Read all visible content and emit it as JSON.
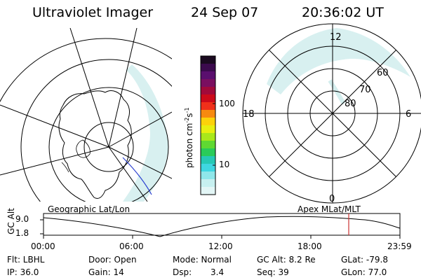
{
  "header": {
    "instrument": "Ultraviolet Imager",
    "date": "24 Sep 07",
    "time": "20:36:02 UT"
  },
  "colorbar": {
    "label": "photon cm",
    "label_sup1": "-2",
    "label_mid": "s",
    "label_sup2": "-1",
    "ticks": [
      "100",
      "10"
    ],
    "colors": [
      "#1a0a20",
      "#3b0a4d",
      "#5a0f6e",
      "#7a0f60",
      "#a10a3a",
      "#cc0a1a",
      "#f0301a",
      "#f78a10",
      "#fcd20a",
      "#e8ef10",
      "#a9e81a",
      "#5fd932",
      "#2acb59",
      "#26c9b5",
      "#3fd7e1",
      "#8fe7ea",
      "#c7f0f0",
      "#e3f6f6"
    ]
  },
  "left_panel": {
    "label": "Geographic Lat/Lon"
  },
  "right_panel": {
    "label": "Apex MLat/MLT",
    "mlt_labels": {
      "top": "12",
      "left": "18",
      "right": "6",
      "bottom": "0"
    },
    "lat_labels": [
      "60",
      "70",
      "80"
    ]
  },
  "timeline": {
    "y_label": "GC Alt",
    "y_ticks": [
      "9.0",
      "1.8"
    ],
    "x_ticks": [
      "00:00",
      "06:00",
      "12:00",
      "18:00",
      "23:59"
    ],
    "marker_color": "#cc3333"
  },
  "footer": {
    "flt": "Flt: LBHL",
    "door": "Door: Open",
    "mode": "Mode: Normal",
    "gcalt": "GC Alt: 8.2 Re",
    "glat": "GLat: -79.8",
    "ip": "IP: 36.0",
    "gain": "Gain: 14",
    "dsp_label": "Dsp:",
    "dsp_value": "3.4",
    "seq": "Seq: 39",
    "glon": "GLon: 77.0"
  }
}
